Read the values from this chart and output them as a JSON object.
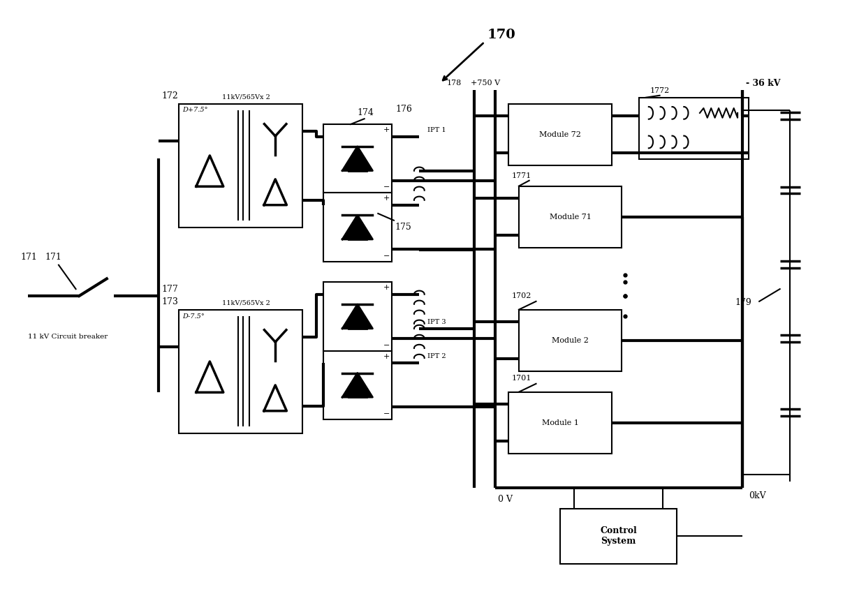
{
  "bg_color": "#ffffff",
  "lc": "#000000",
  "tlw": 3.0,
  "nlw": 1.5,
  "fig_label": "170",
  "ref_171": "171",
  "ref_172": "172",
  "ref_173": "173",
  "ref_174": "174",
  "ref_175": "175",
  "ref_176": "176",
  "ref_177": "177",
  "ref_178": "178",
  "ref_179": "179",
  "ref_1701": "1701",
  "ref_1702": "1702",
  "ref_1771": "1771",
  "ref_1772": "1772",
  "label_cb": "11 kV Circuit breaker",
  "label_xfmr1": "11kV/565Vx 2",
  "label_xfmr2": "11kV/565Vx 2",
  "label_d1": "D+7.5°",
  "label_d2": "D-7.5°",
  "label_ipt1": "IPT 1",
  "label_ipt2": "IPT 2",
  "label_ipt3": "IPT 3",
  "label_750v": "+750 V",
  "label_0v": "0 V",
  "label_36kv": "- 36 kV",
  "label_0kv": "0kV",
  "label_m72": "Module 72",
  "label_m71": "Module 71",
  "label_m2": "Module 2",
  "label_m1": "Module 1",
  "label_ctrl": "Control\nSystem"
}
